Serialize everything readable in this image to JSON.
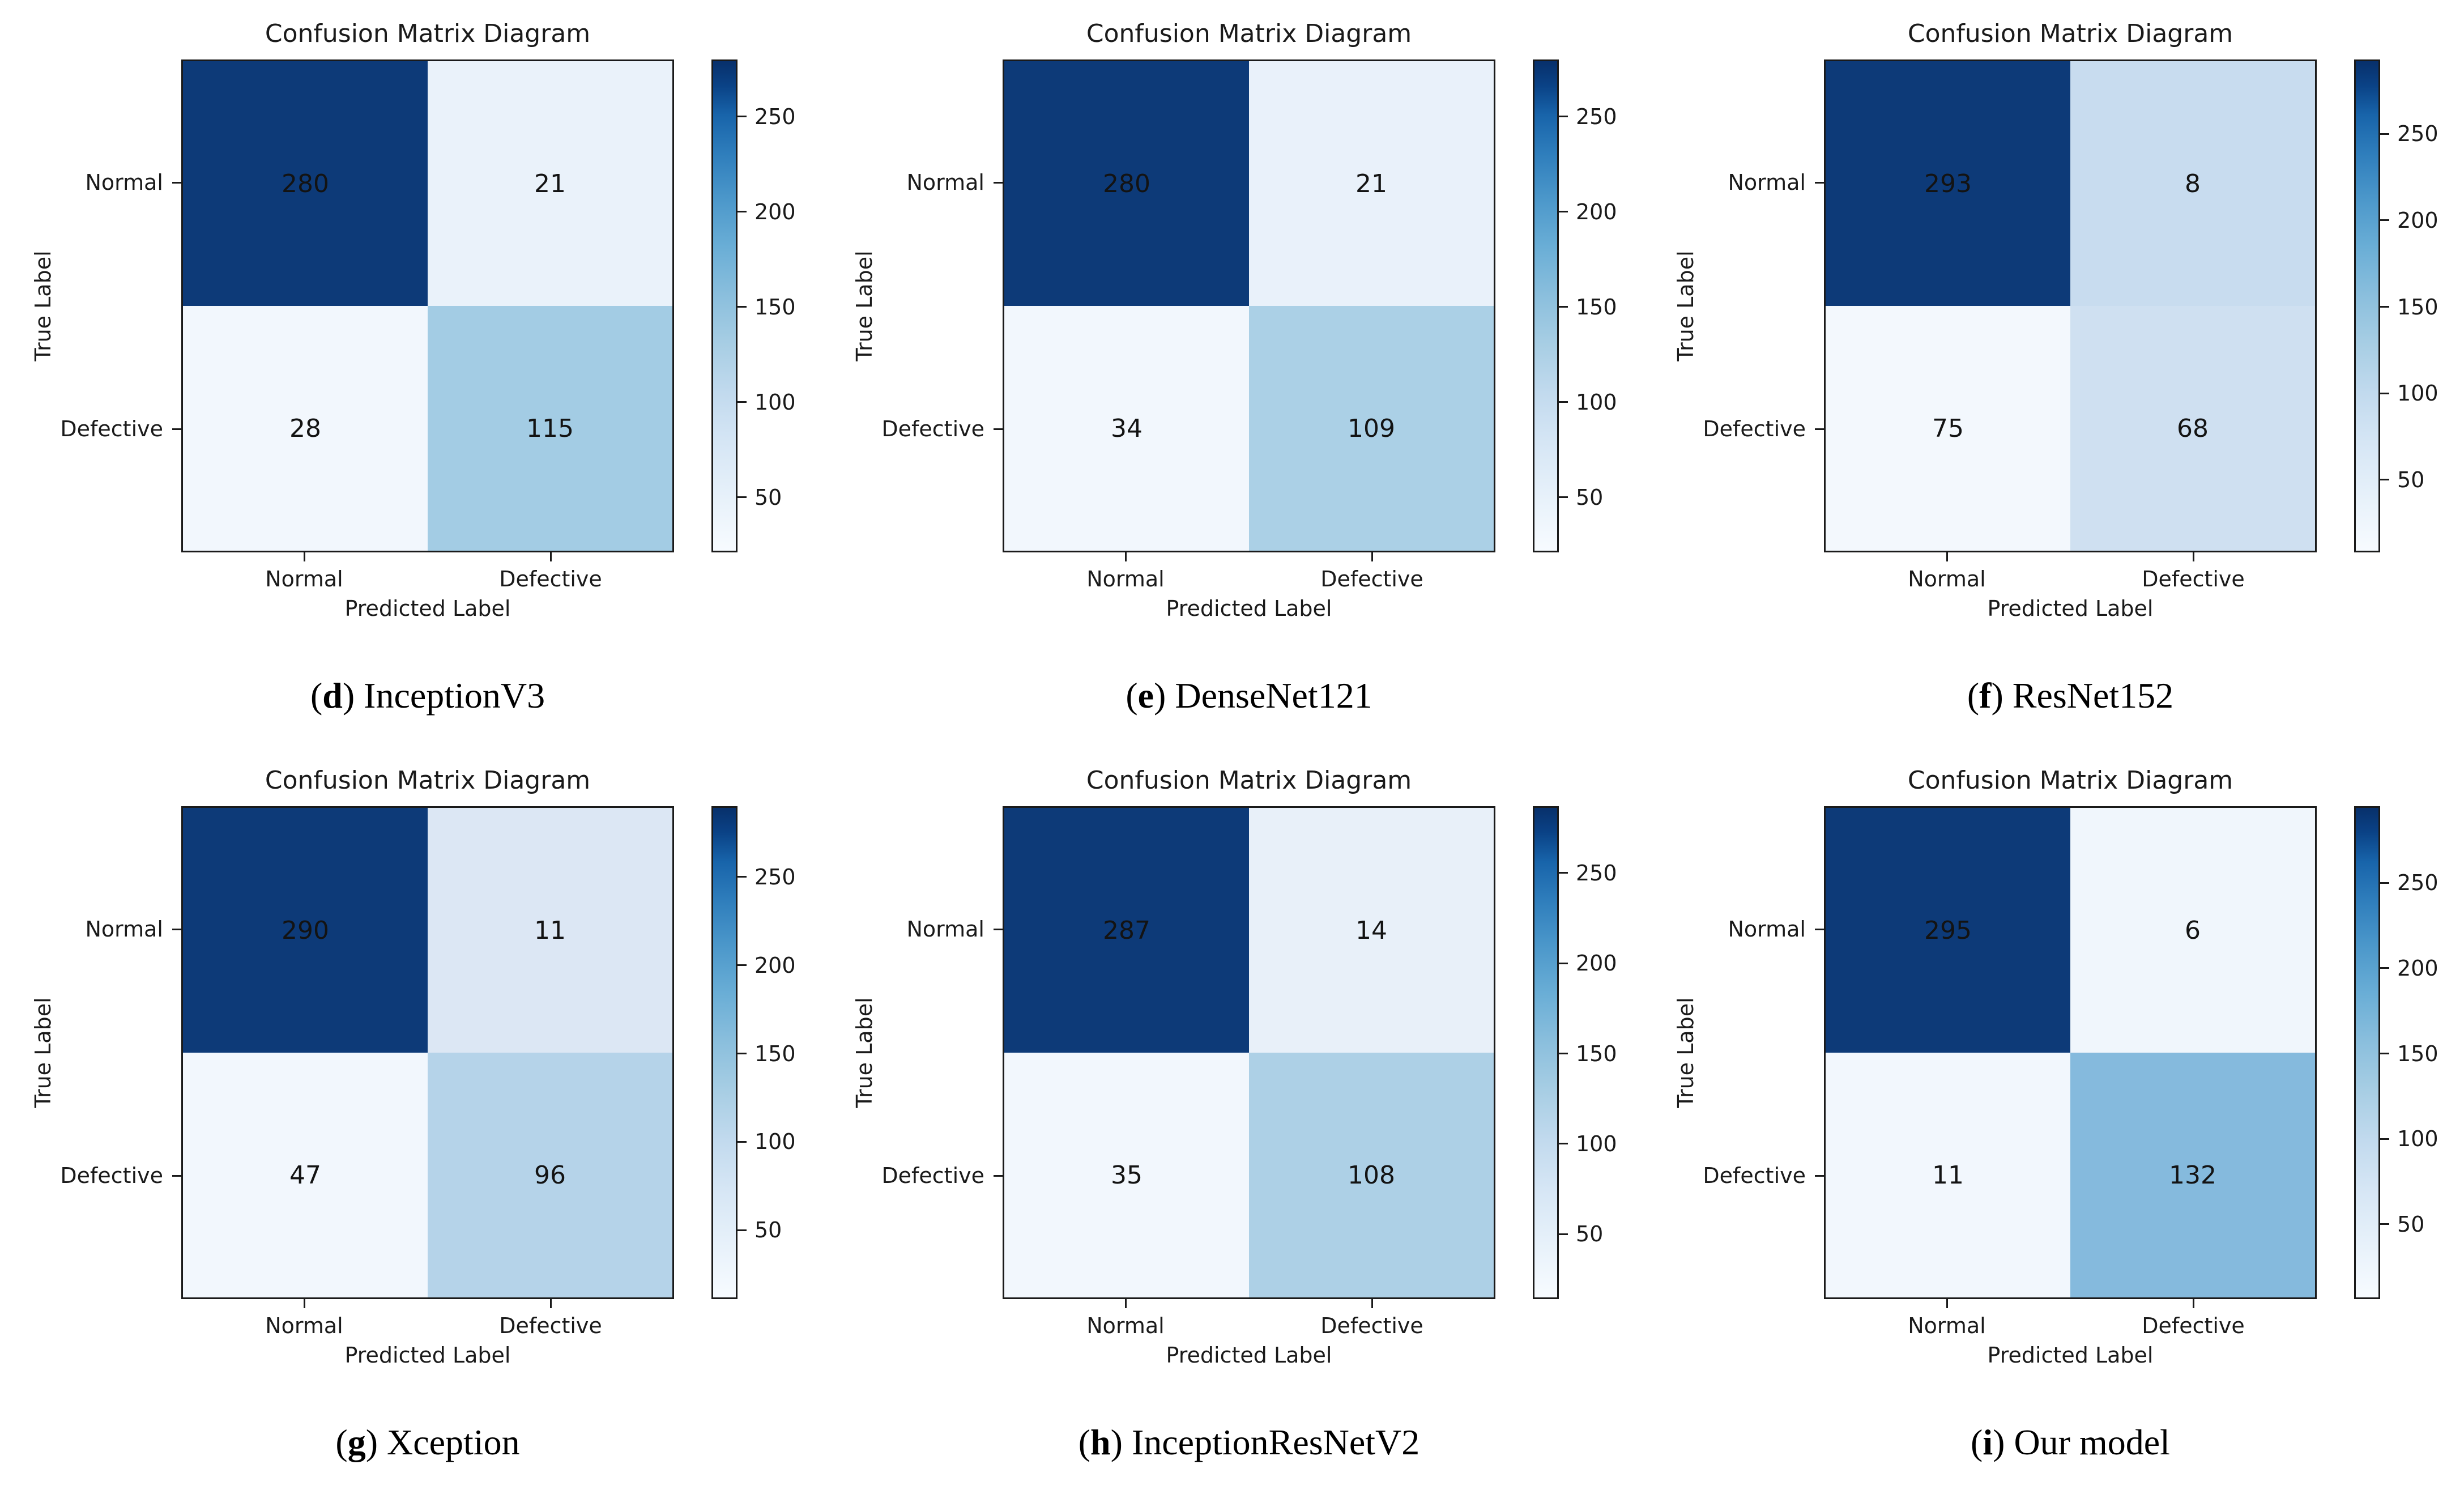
{
  "figure": {
    "layout": "2x3 grid of confusion matrix subplots",
    "background": "#ffffff",
    "spine_color": "#1a1a1a",
    "dark_cell_color": "#0d3a78",
    "colormap": "Blues"
  },
  "chart_data": [
    {
      "type": "heatmap",
      "title": "Confusion Matrix Diagram",
      "caption": {
        "pre": "(",
        "bold": "d",
        "post": ") InceptionV3"
      },
      "xlabel": "Predicted Label",
      "ylabel": "True Label",
      "x_ticklabels": [
        "Normal",
        "Defective"
      ],
      "y_ticklabels": [
        "Normal",
        "Defective"
      ],
      "values": [
        [
          280,
          21
        ],
        [
          28,
          115
        ]
      ],
      "cell_colors": [
        [
          "#0d3a78",
          "#eaf2fa"
        ],
        [
          "#f2f7fd",
          "#a3cce4"
        ]
      ],
      "colormap": "Blues",
      "colorbar": {
        "position": "right",
        "ticks": [
          250,
          200,
          150,
          100,
          50
        ]
      }
    },
    {
      "type": "heatmap",
      "title": "Confusion Matrix Diagram",
      "caption": {
        "pre": "(",
        "bold": "e",
        "post": ") DenseNet121"
      },
      "xlabel": "Predicted Label",
      "ylabel": "True Label",
      "x_ticklabels": [
        "Normal",
        "Defective"
      ],
      "y_ticklabels": [
        "Normal",
        "Defective"
      ],
      "values": [
        [
          280,
          21
        ],
        [
          34,
          109
        ]
      ],
      "cell_colors": [
        [
          "#0d3a78",
          "#e9f1fa"
        ],
        [
          "#f2f7fd",
          "#abd0e6"
        ]
      ],
      "colormap": "Blues",
      "colorbar": {
        "position": "right",
        "ticks": [
          250,
          200,
          150,
          100,
          50
        ]
      }
    },
    {
      "type": "heatmap",
      "title": "Confusion Matrix Diagram",
      "caption": {
        "pre": "(",
        "bold": "f",
        "post": ") ResNet152"
      },
      "xlabel": "Predicted Label",
      "ylabel": "True Label",
      "x_ticklabels": [
        "Normal",
        "Defective"
      ],
      "y_ticklabels": [
        "Normal",
        "Defective"
      ],
      "values": [
        [
          293,
          8
        ],
        [
          75,
          68
        ]
      ],
      "cell_colors": [
        [
          "#0d3a78",
          "#c8dcef"
        ],
        [
          "#f3f8fd",
          "#cfe0f1"
        ]
      ],
      "colormap": "Blues",
      "colorbar": {
        "position": "right",
        "ticks": [
          250,
          200,
          150,
          100,
          50
        ]
      }
    },
    {
      "type": "heatmap",
      "title": "Confusion Matrix Diagram",
      "caption": {
        "pre": "(",
        "bold": "g",
        "post": ") Xception"
      },
      "xlabel": "Predicted Label",
      "ylabel": "True Label",
      "x_ticklabels": [
        "Normal",
        "Defective"
      ],
      "y_ticklabels": [
        "Normal",
        "Defective"
      ],
      "values": [
        [
          290,
          11
        ],
        [
          47,
          96
        ]
      ],
      "cell_colors": [
        [
          "#0d3a78",
          "#dce7f4"
        ],
        [
          "#f2f7fd",
          "#b5d3e9"
        ]
      ],
      "colormap": "Blues",
      "colorbar": {
        "position": "right",
        "ticks": [
          250,
          200,
          150,
          100,
          50
        ]
      }
    },
    {
      "type": "heatmap",
      "title": "Confusion Matrix Diagram",
      "caption": {
        "pre": "(",
        "bold": "h",
        "post": ") InceptionResNetV2"
      },
      "xlabel": "Predicted Label",
      "ylabel": "True Label",
      "x_ticklabels": [
        "Normal",
        "Defective"
      ],
      "y_ticklabels": [
        "Normal",
        "Defective"
      ],
      "values": [
        [
          287,
          14
        ],
        [
          35,
          108
        ]
      ],
      "cell_colors": [
        [
          "#0d3a78",
          "#e8f0f9"
        ],
        [
          "#f2f7fd",
          "#add0e6"
        ]
      ],
      "colormap": "Blues",
      "colorbar": {
        "position": "right",
        "ticks": [
          250,
          200,
          150,
          100,
          50
        ]
      }
    },
    {
      "type": "heatmap",
      "title": "Confusion Matrix Diagram",
      "caption": {
        "pre": "(",
        "bold": "i",
        "post": ") Our model"
      },
      "xlabel": "Predicted Label",
      "ylabel": "True Label",
      "x_ticklabels": [
        "Normal",
        "Defective"
      ],
      "y_ticklabels": [
        "Normal",
        "Defective"
      ],
      "values": [
        [
          295,
          6
        ],
        [
          11,
          132
        ]
      ],
      "cell_colors": [
        [
          "#0d3a78",
          "#f0f6fc"
        ],
        [
          "#f2f7fd",
          "#85badd"
        ]
      ],
      "colormap": "Blues",
      "colorbar": {
        "position": "right",
        "ticks": [
          250,
          200,
          150,
          100,
          50
        ]
      }
    }
  ]
}
